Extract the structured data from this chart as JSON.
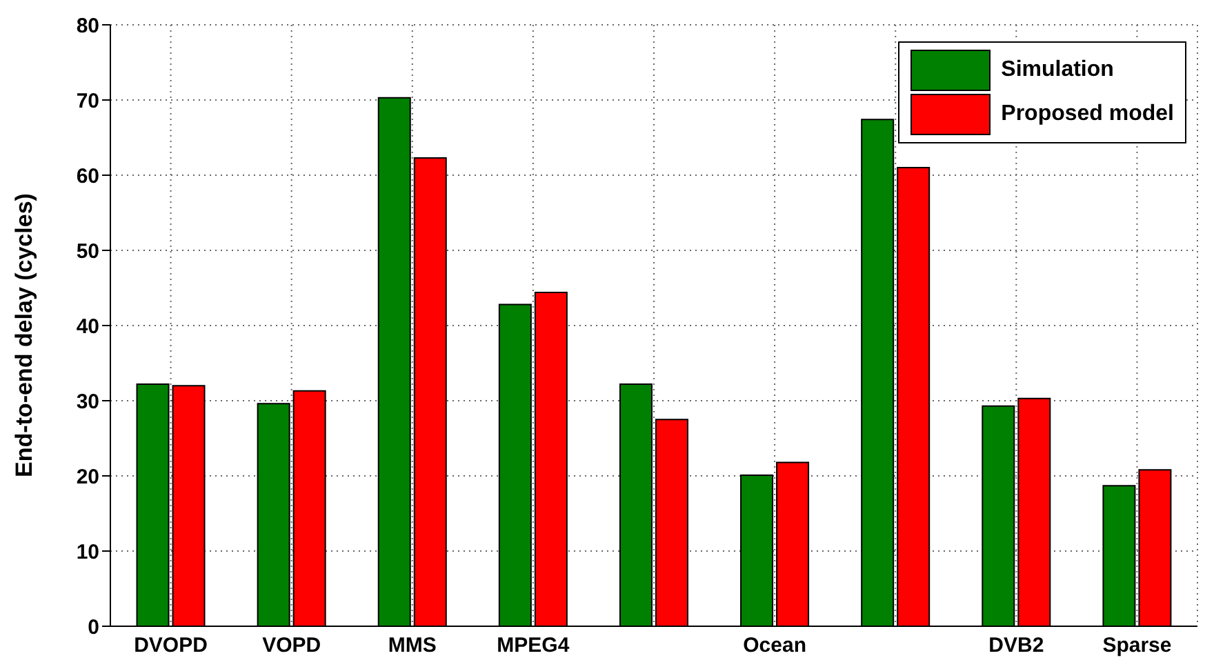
{
  "chart_data": {
    "type": "bar",
    "ylabel": "End-to-end delay (cycles)",
    "categories": [
      "DVOPD",
      "VOPD",
      "MMS",
      "MPEG4",
      null,
      "Ocean",
      null,
      "DVB2",
      "Sparse"
    ],
    "series": [
      {
        "name": "Simulation",
        "color": "#008000",
        "values": [
          32.2,
          29.6,
          70.3,
          42.8,
          32.2,
          20.1,
          67.4,
          29.3,
          18.7
        ]
      },
      {
        "name": "Proposed model",
        "color": "#ff0000",
        "values": [
          32.0,
          31.3,
          62.3,
          44.4,
          27.5,
          21.8,
          61.0,
          30.3,
          20.8
        ]
      }
    ],
    "ylim": [
      0,
      80
    ],
    "yticks": [
      0,
      10,
      20,
      30,
      40,
      50,
      60,
      70,
      80
    ],
    "grid": true,
    "legend": "top right"
  }
}
